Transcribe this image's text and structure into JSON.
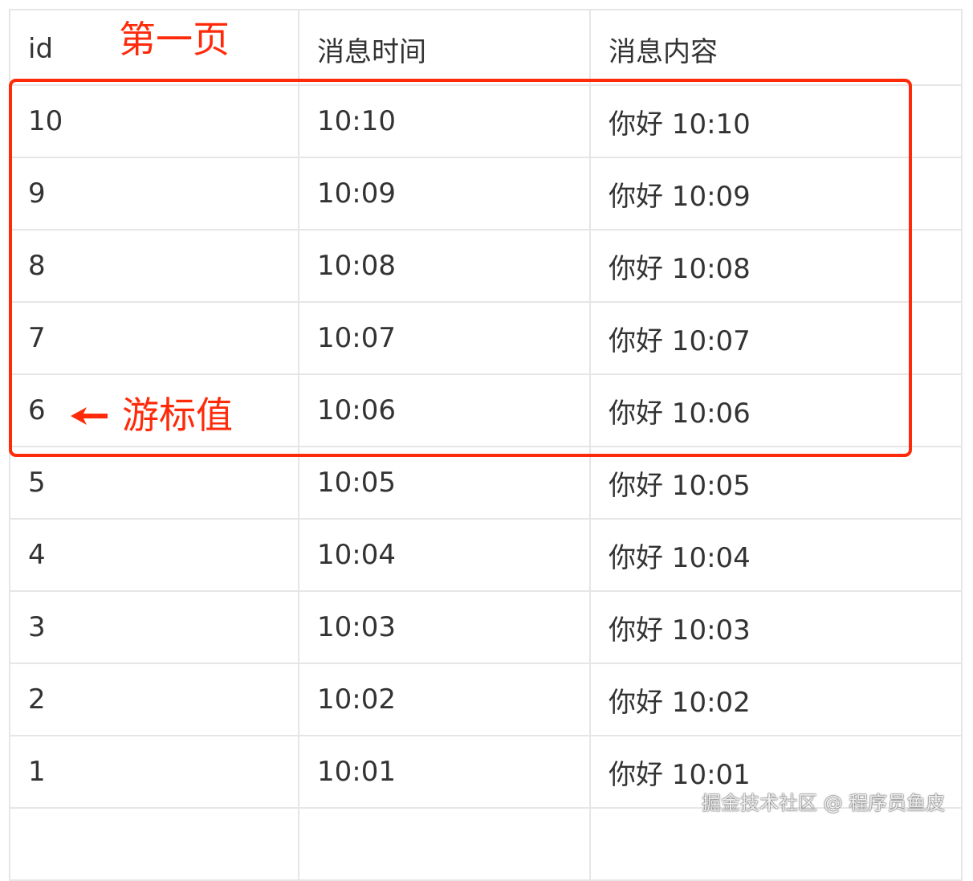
{
  "table": {
    "headers": [
      "id",
      "消息时间",
      "消息内容"
    ],
    "rows": [
      [
        "10",
        "10:10",
        "你好 10:10"
      ],
      [
        "9",
        "10:09",
        "你好 10:09"
      ],
      [
        "8",
        "10:08",
        "你好 10:08"
      ],
      [
        "7",
        "10:07",
        "你好 10:07"
      ],
      [
        "6",
        "10:06",
        "你好 10:06"
      ],
      [
        "5",
        "10:05",
        "你好 10:05"
      ],
      [
        "4",
        "10:04",
        "你好 10:04"
      ],
      [
        "3",
        "10:03",
        "你好 10:03"
      ],
      [
        "2",
        "10:02",
        "你好 10:02"
      ],
      [
        "1",
        "10:01",
        "你好 10:01"
      ]
    ]
  },
  "annotations": {
    "page_label": "第一页",
    "cursor_label": "游标值",
    "highlight_color": "#ff2a0a",
    "arrow_icon": "arrow-left-icon"
  },
  "watermark": "掘金技术社区 @ 程序员鱼皮"
}
